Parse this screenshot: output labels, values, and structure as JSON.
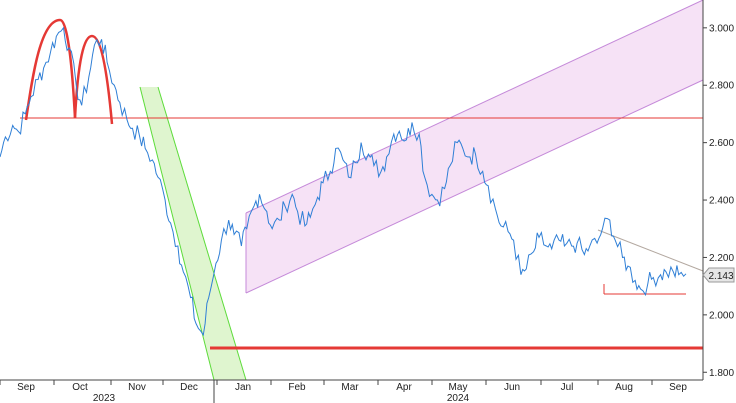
{
  "chart_data": {
    "type": "line",
    "y_axis": {
      "ticks": [
        3.0,
        2.8,
        2.6,
        2.4,
        2.2,
        2.0,
        1.8
      ],
      "tick_labels": [
        "3.000",
        "2.800",
        "2.600",
        "2.400",
        "2.200",
        "2.000",
        "1.800"
      ],
      "ylim": [
        1.78,
        3.09
      ]
    },
    "x_axis": {
      "month_labels": [
        "Sep",
        "Oct",
        "Nov",
        "Dec",
        "Jan",
        "Feb",
        "Mar",
        "Apr",
        "May",
        "Jun",
        "Jul",
        "Aug",
        "Sep"
      ],
      "years": [
        "2023",
        "2024"
      ]
    },
    "last_value": "2.143",
    "series": [
      {
        "color": "#2f7fd6",
        "x": [
          0,
          3,
          7,
          10,
          14,
          17,
          21,
          24,
          28,
          31,
          35,
          38,
          42,
          45,
          49,
          52,
          56,
          59,
          63,
          66,
          70,
          73,
          77,
          80,
          84,
          87,
          91,
          94,
          98,
          101,
          105,
          108,
          112,
          115,
          119,
          122,
          126,
          129,
          133,
          136,
          140,
          143,
          147,
          150,
          154,
          157,
          161,
          164,
          168,
          171,
          175,
          178,
          182,
          185,
          189,
          192,
          196,
          199,
          203,
          206,
          210,
          213,
          217,
          220,
          224,
          227,
          231,
          234,
          238,
          241,
          245,
          248,
          252,
          255,
          259,
          262,
          266,
          269,
          273,
          276,
          280,
          283,
          287,
          290,
          294,
          297,
          301,
          304,
          308,
          311,
          315,
          318,
          322,
          325,
          329,
          332,
          336,
          339,
          343,
          346,
          350,
          353,
          357,
          360,
          364,
          367,
          371,
          374,
          378
        ],
        "values": [
          2.55,
          2.62,
          2.66,
          2.64,
          2.7,
          2.76,
          2.82,
          2.86,
          2.92,
          2.97,
          3.0,
          2.93,
          2.8,
          2.73,
          2.83,
          2.94,
          2.96,
          2.88,
          2.8,
          2.74,
          2.68,
          2.65,
          2.62,
          2.58,
          2.54,
          2.48,
          2.4,
          2.32,
          2.24,
          2.15,
          2.06,
          1.97,
          1.93,
          2.06,
          2.18,
          2.26,
          2.33,
          2.28,
          2.24,
          2.3,
          2.38,
          2.42,
          2.36,
          2.3,
          2.33,
          2.38,
          2.42,
          2.36,
          2.31,
          2.34,
          2.41,
          2.46,
          2.5,
          2.58,
          2.54,
          2.48,
          2.53,
          2.6,
          2.56,
          2.52,
          2.5,
          2.55,
          2.63,
          2.64,
          2.61,
          2.67,
          2.63,
          2.48,
          2.42,
          2.4,
          2.44,
          2.52,
          2.6,
          2.58,
          2.55,
          2.56,
          2.5,
          2.45,
          2.37,
          2.31,
          2.29,
          2.26,
          2.14,
          2.16,
          2.22,
          2.27,
          2.24,
          2.23,
          2.26,
          2.24,
          2.24,
          2.25,
          2.21,
          2.24,
          2.25,
          2.3,
          2.33,
          2.26,
          2.2,
          2.17,
          2.12,
          2.09,
          2.11,
          2.13,
          2.14,
          2.15,
          2.15,
          2.14,
          2.143
        ]
      }
    ],
    "annotations": [
      {
        "type": "horizontal_line",
        "y": 2.69,
        "color": "#e53935"
      },
      {
        "type": "horizontal_line",
        "y": 1.9,
        "color": "#e53935"
      },
      {
        "type": "horizontal_line",
        "y": 2.08,
        "color": "#e53935"
      },
      {
        "type": "head_and_shoulders_arcs",
        "color": "#e53935"
      },
      {
        "type": "descending_channel",
        "color": "#5ddc3a"
      },
      {
        "type": "ascending_channel",
        "color": "#c58ad9"
      },
      {
        "type": "trend_line",
        "color": "#b3a8a0"
      }
    ],
    "colors": {
      "line": "#2f7fd6",
      "resistance": "#e53935",
      "down_channel_fill": "#dff5cf",
      "down_channel_edge": "#5ddc3a",
      "up_channel_fill": "#f6e2f6",
      "up_channel_edge": "#c58ad9"
    }
  }
}
